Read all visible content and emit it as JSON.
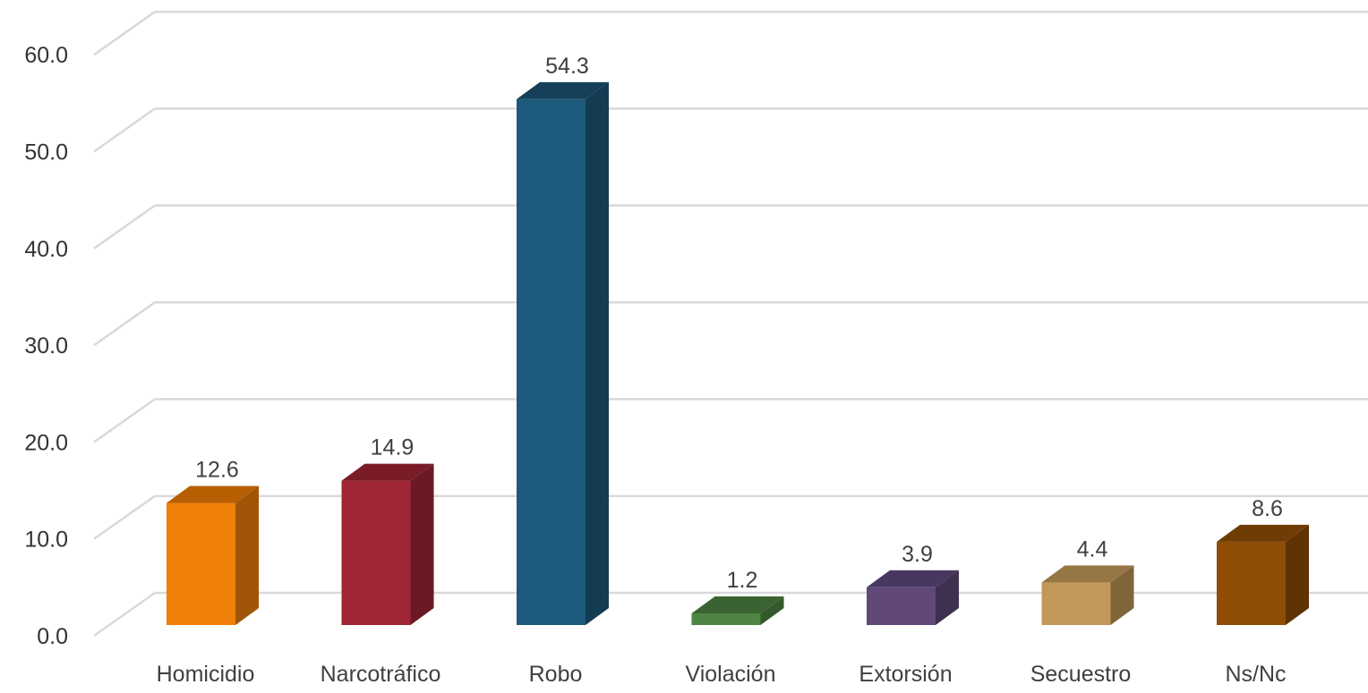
{
  "chart_data": {
    "type": "bar",
    "style": "3d-column",
    "categories": [
      "Homicidio",
      "Narcotráfico",
      "Robo",
      "Violación",
      "Extorsión",
      "Secuestro",
      "Ns/Nc"
    ],
    "values": [
      12.6,
      14.9,
      54.3,
      1.2,
      3.9,
      4.4,
      8.6
    ],
    "value_labels": [
      "12.6",
      "14.9",
      "54.3",
      "1.2",
      "3.9",
      "4.4",
      "8.6"
    ],
    "yticks": [
      "0.0",
      "10.0",
      "20.0",
      "30.0",
      "40.0",
      "50.0",
      "60.0"
    ],
    "ylim": [
      0,
      60
    ],
    "grid": true,
    "legend": "none",
    "colors": {
      "front": [
        "#F07F09",
        "#A02535",
        "#1D5A7C",
        "#4E8542",
        "#604878",
        "#C19859",
        "#8F4D05"
      ],
      "side": [
        "#A05507",
        "#6A1925",
        "#133C53",
        "#34592C",
        "#40304F",
        "#80653B",
        "#5F3303"
      ],
      "top": [
        "#B85F04",
        "#7A1C28",
        "#163F59",
        "#3A6331",
        "#483760",
        "#967645",
        "#6F3C04"
      ],
      "grid": "#D9D9D9"
    }
  }
}
